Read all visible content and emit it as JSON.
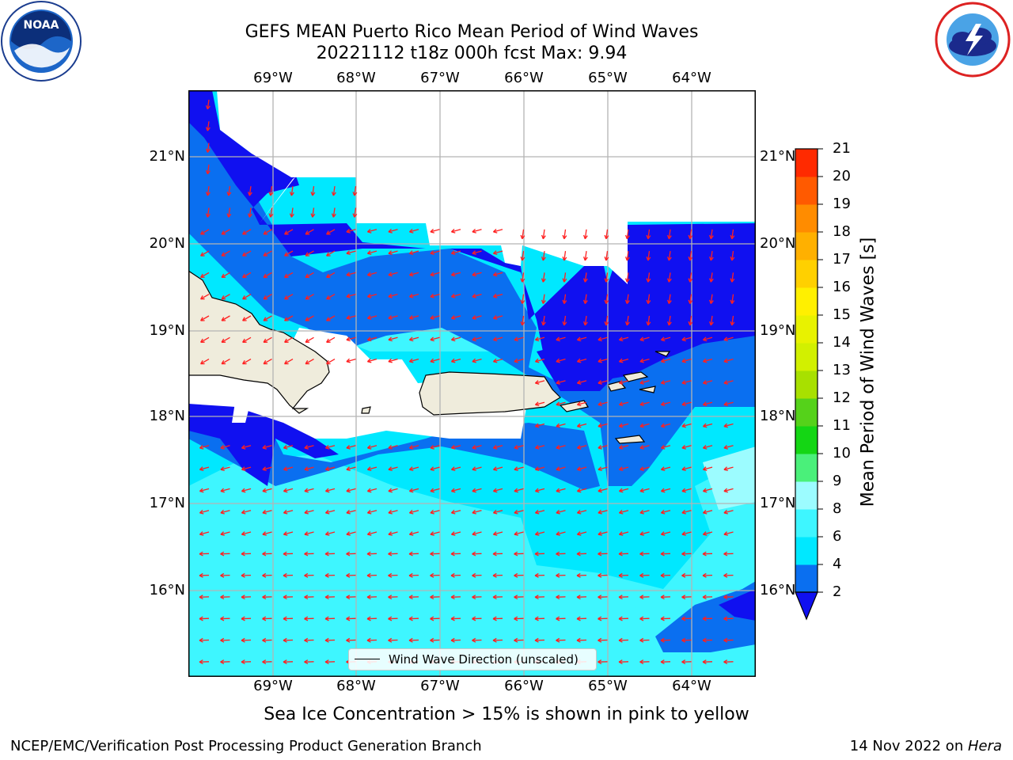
{
  "title": {
    "line1": "GEFS MEAN Puerto Rico Mean Period of Wind Waves",
    "line2": "20221112 t18z 000h fcst   Max: 9.94"
  },
  "axes": {
    "lon_ticks": [
      "69°W",
      "68°W",
      "67°W",
      "66°W",
      "65°W",
      "64°W"
    ],
    "lat_ticks": [
      "21°N",
      "20°N",
      "19°N",
      "18°N",
      "17°N",
      "16°N"
    ]
  },
  "colorbar": {
    "title": "Mean Period of Wind Waves [s]",
    "levels": [
      2,
      4,
      6,
      8,
      9,
      10,
      11,
      12,
      13,
      14,
      15,
      16,
      17,
      18,
      19,
      20,
      21
    ],
    "colors": [
      "#0a6ff0",
      "#00e8ff",
      "#3ef6ff",
      "#9cfcff",
      "#4af07a",
      "#14d614",
      "#55d21a",
      "#a8e000",
      "#d2f000",
      "#e8f200",
      "#fff000",
      "#ffd000",
      "#ffb000",
      "#ff8c00",
      "#ff5a00",
      "#ff2a00"
    ],
    "under_color": "#1010f0"
  },
  "legend": {
    "label": "Wind Wave Direction (unscaled)"
  },
  "note": "Sea Ice Concentration > 15% is shown in pink to yellow",
  "footer": {
    "left": "NCEP/EMC/Verification Post Processing Product Generation Branch",
    "right_prefix": "14 Nov 2022 on ",
    "right_machine": "Hera"
  },
  "logos": {
    "left": {
      "text": "NOAA",
      "icon": "noaa-logo-icon"
    },
    "right": {
      "icon": "nws-logo-icon"
    }
  },
  "colors": {
    "land": "#efecdc",
    "arrow": "#ff2020",
    "grid": "#b4b4b4"
  }
}
